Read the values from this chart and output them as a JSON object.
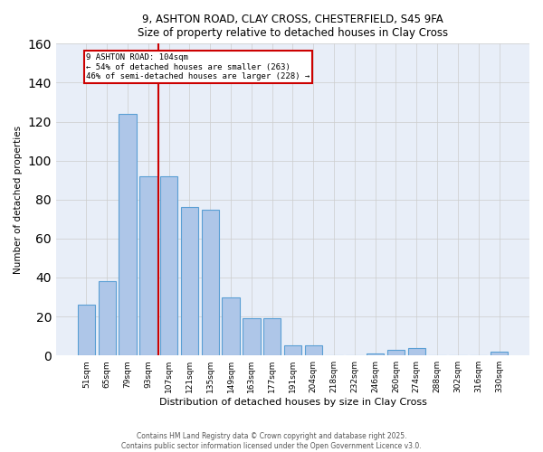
{
  "title_line1": "9, ASHTON ROAD, CLAY CROSS, CHESTERFIELD, S45 9FA",
  "title_line2": "Size of property relative to detached houses in Clay Cross",
  "xlabel": "Distribution of detached houses by size in Clay Cross",
  "ylabel": "Number of detached properties",
  "categories": [
    "51sqm",
    "65sqm",
    "79sqm",
    "93sqm",
    "107sqm",
    "121sqm",
    "135sqm",
    "149sqm",
    "163sqm",
    "177sqm",
    "191sqm",
    "204sqm",
    "218sqm",
    "232sqm",
    "246sqm",
    "260sqm",
    "274sqm",
    "288sqm",
    "302sqm",
    "316sqm",
    "330sqm"
  ],
  "values": [
    26,
    38,
    124,
    92,
    92,
    76,
    75,
    30,
    19,
    19,
    5,
    5,
    0,
    0,
    1,
    3,
    4,
    0,
    0,
    0,
    2
  ],
  "bar_color": "#aec6e8",
  "bar_edge_color": "#5a9fd4",
  "vline_index": 4,
  "vline_color": "#cc0000",
  "annotation_text": "9 ASHTON ROAD: 104sqm\n← 54% of detached houses are smaller (263)\n46% of semi-detached houses are larger (228) →",
  "annotation_box_color": "#cc0000",
  "ylim": [
    0,
    160
  ],
  "yticks": [
    0,
    20,
    40,
    60,
    80,
    100,
    120,
    140,
    160
  ],
  "grid_color": "#cccccc",
  "bg_color": "#e8eef8",
  "footnote": "Contains HM Land Registry data © Crown copyright and database right 2025.\nContains public sector information licensed under the Open Government Licence v3.0."
}
